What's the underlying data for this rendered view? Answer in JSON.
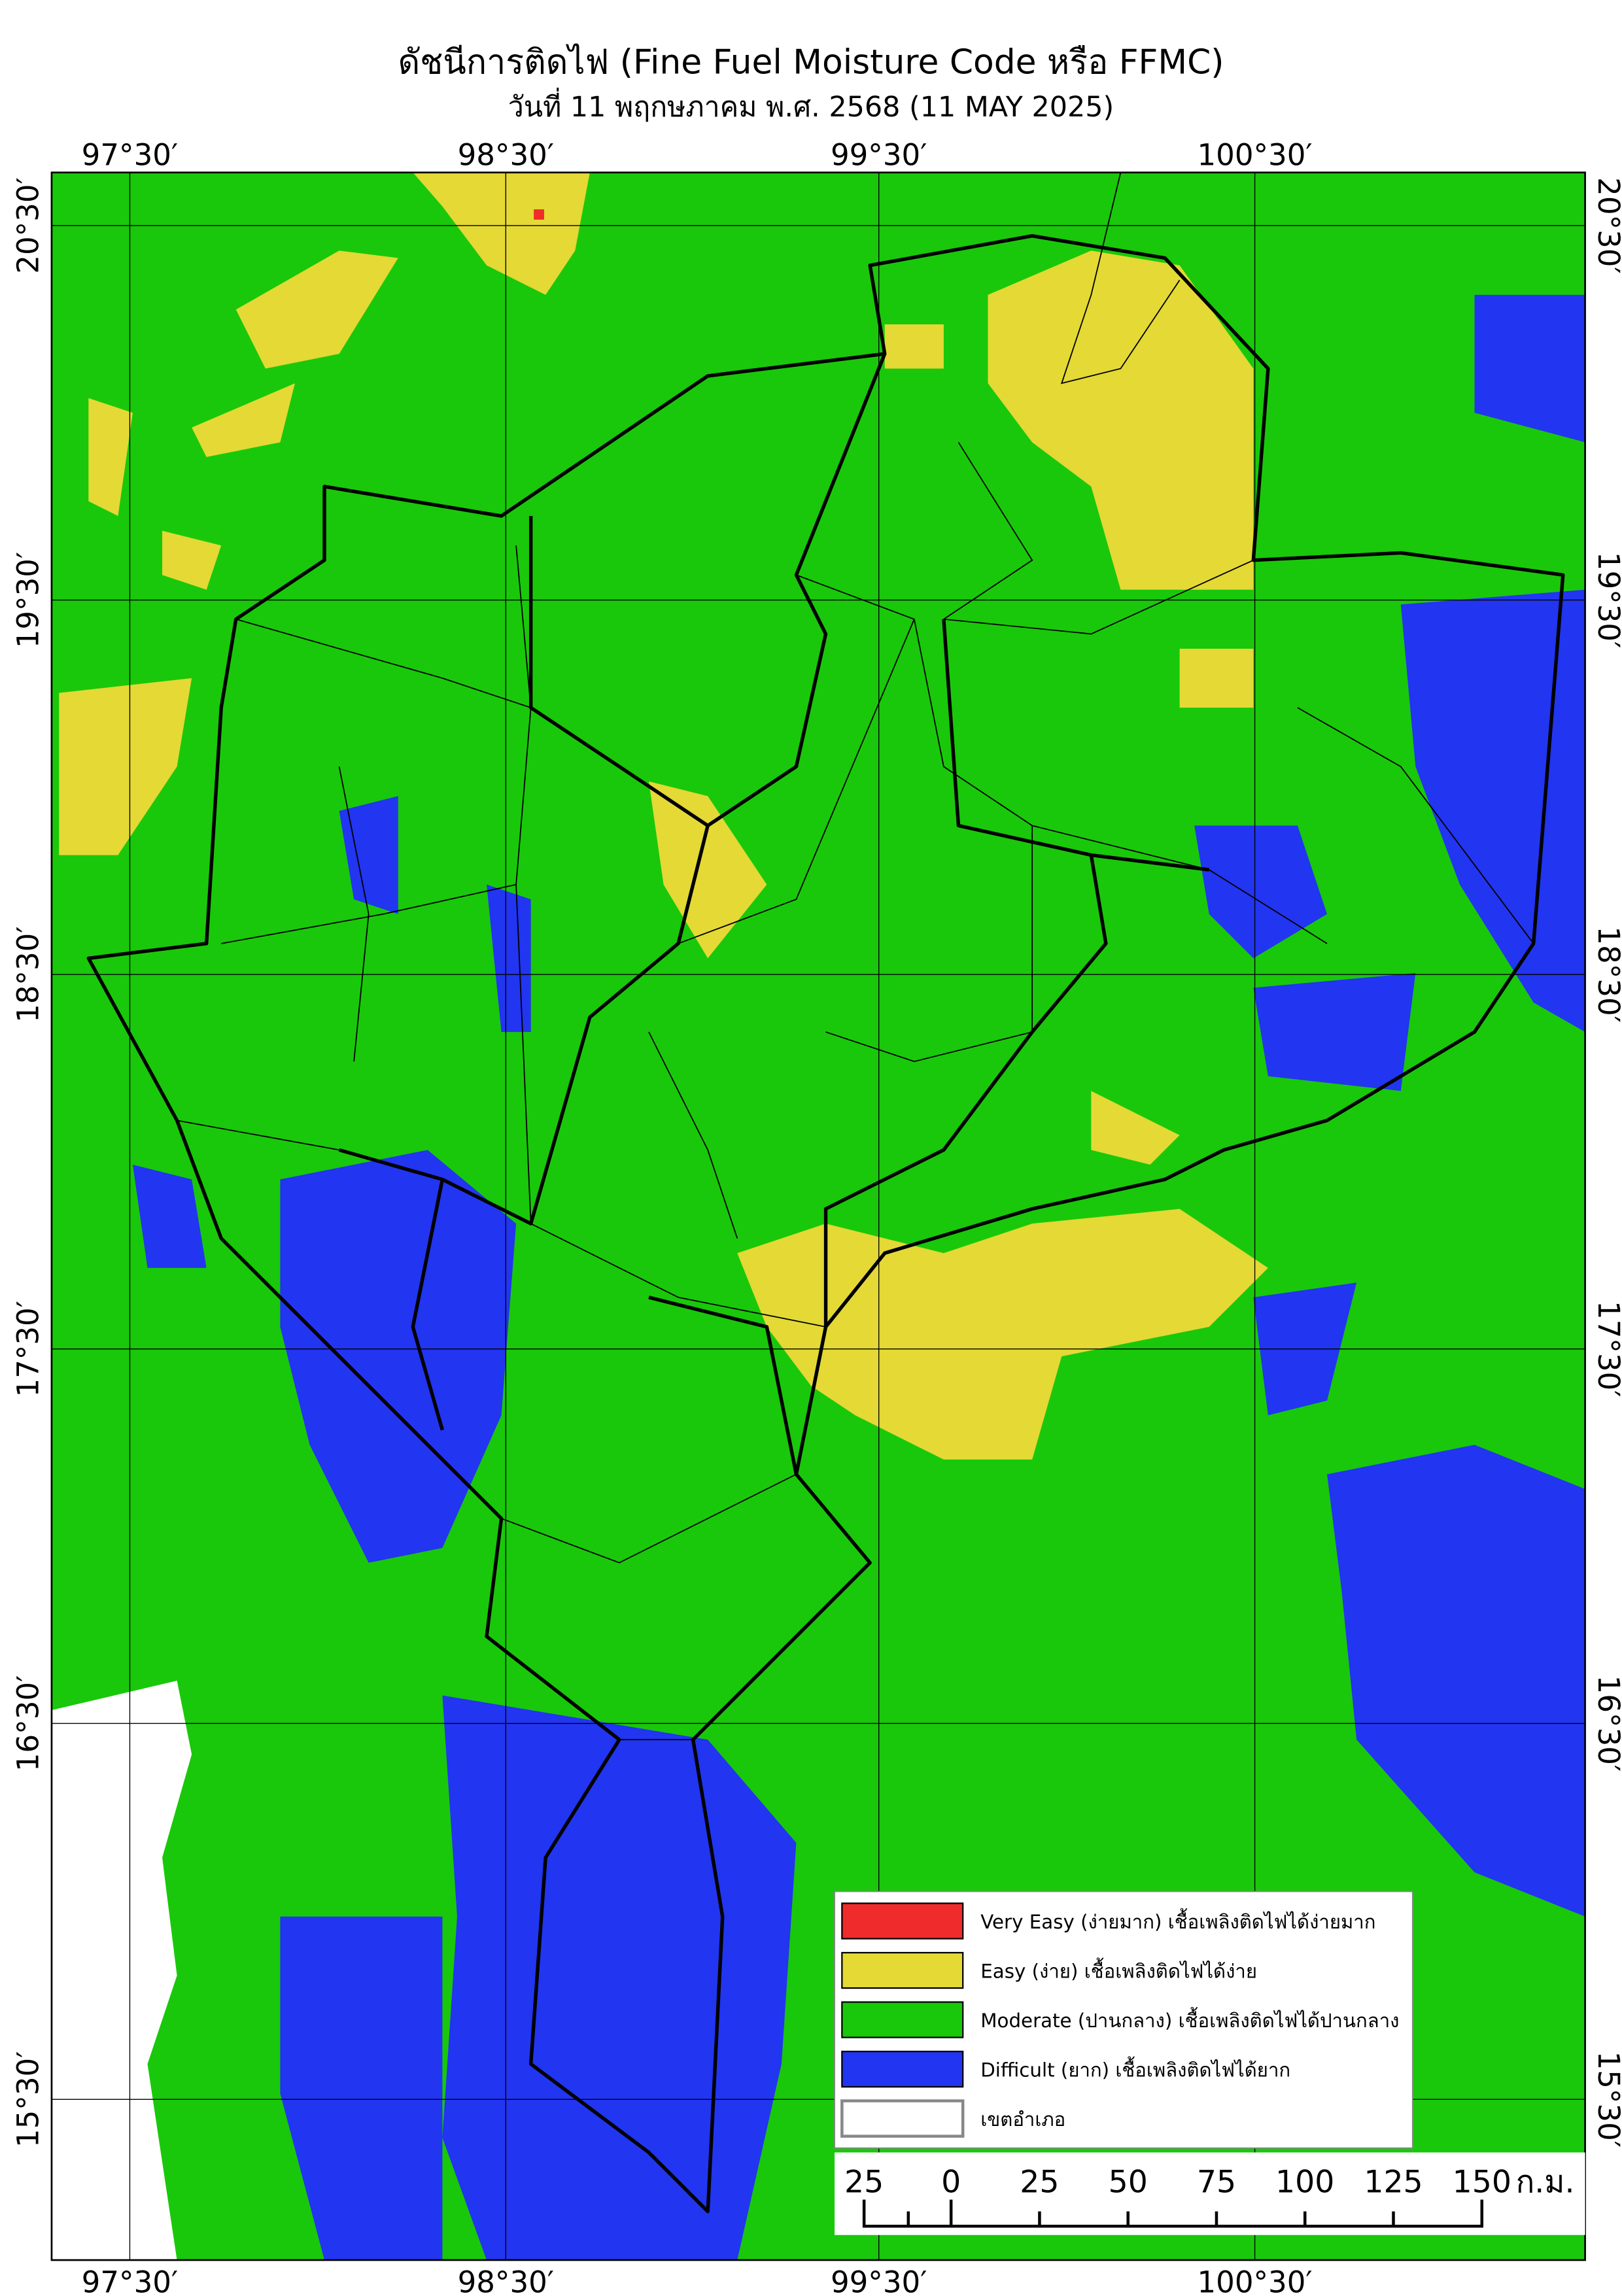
{
  "title": "ดัชนีการติดไฟ (Fine Fuel Moisture Code หรือ FFMC)",
  "subtitle": "วันที่ 11 พฤกษภาคม พ.ศ. 2568 (11 MAY 2025)",
  "longitude_labels": [
    "97°30′",
    "98°30′",
    "99°30′",
    "100°30′"
  ],
  "latitude_labels": [
    "20°30′",
    "19°30′",
    "18°30′",
    "17°30′",
    "16°30′",
    "15°30′"
  ],
  "legend": [
    {
      "label": "Very Easy (ง่ายมาก) เชื้อเพลิงติดไฟได้ง่ายมาก",
      "color": "#f02b2b"
    },
    {
      "label": "Easy (ง่าย) เชื้อเพลิงติดไฟได้ง่าย",
      "color": "#e4d935"
    },
    {
      "label": "Moderate (ปานกลาง) เชื้อเพลิงติดไฟได้ปานกลาง",
      "color": "#19c80a"
    },
    {
      "label": "Difficult (ยาก) เชื้อเพลิงติดไฟได้ยาก",
      "color": "#2235f0"
    },
    {
      "label": "เขตอำเภอ",
      "color": "#ffffff"
    }
  ],
  "scale_bar": {
    "labels": [
      "25",
      "0",
      "25",
      "50",
      "75",
      "100",
      "125",
      "150"
    ],
    "unit": "ก.ม."
  }
}
